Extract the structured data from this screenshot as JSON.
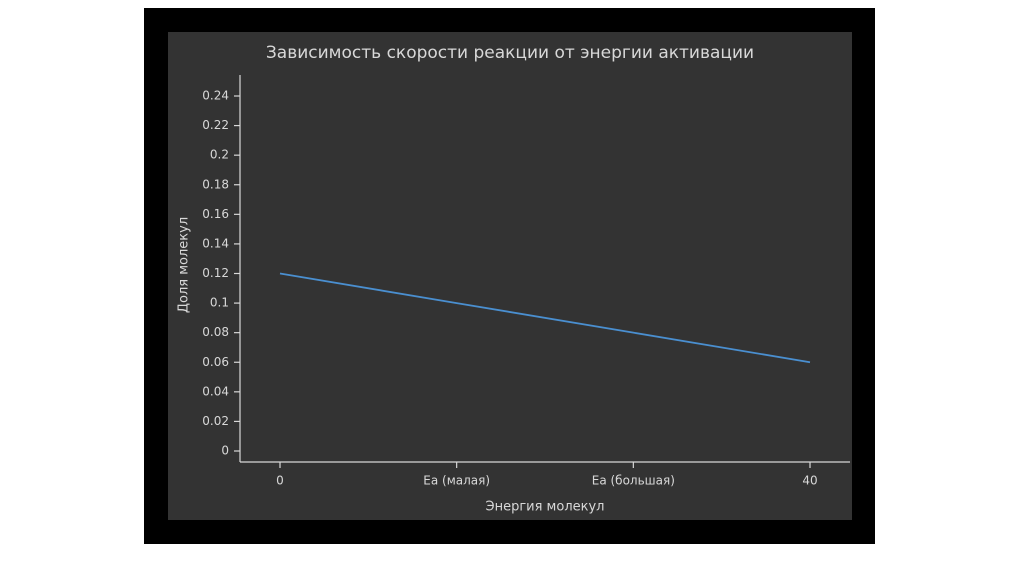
{
  "chart_data": {
    "type": "line",
    "title": "Зависимость скорости реакции от энергии активации",
    "x_label": "Энергия молекул",
    "y_label": "Доля молекул",
    "categories": [
      "0",
      "Ea (малая)",
      "Ea (большая)",
      "40"
    ],
    "series": [
      {
        "color": "#4a8fd0",
        "values": [
          0.12,
          0.1,
          0.08,
          0.06
        ]
      }
    ],
    "ylim": [
      0,
      0.24
    ],
    "yticks": [
      0,
      0.02,
      0.04,
      0.06,
      0.08,
      0.1,
      0.12,
      0.14,
      0.16,
      0.18,
      0.2,
      0.22,
      0.24
    ]
  }
}
